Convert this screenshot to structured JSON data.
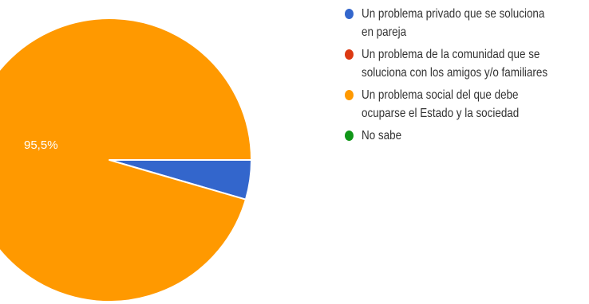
{
  "chart_data": {
    "type": "pie",
    "slices": [
      {
        "label": "Un problema privado que se soluciona en pareja",
        "value": 4.5,
        "color": "#3366cc"
      },
      {
        "label": "Un problema de la comunidad que se soluciona con los amigos y/o familiares",
        "value": 0,
        "color": "#dc3912"
      },
      {
        "label": "Un problema social del que debe ocuparse el Estado y la sociedad",
        "value": 95.5,
        "color": "#ff9900"
      },
      {
        "label": "No sabe",
        "value": 0,
        "color": "#109618"
      }
    ],
    "data_labels": [
      {
        "slice": 2,
        "text": "95,5%"
      }
    ],
    "legend": {
      "position": "right",
      "items": [
        {
          "lines": [
            "Un problema privado que se soluciona",
            "en pareja"
          ],
          "color": "#3366cc"
        },
        {
          "lines": [
            "Un problema de la comunidad que se",
            "soluciona con los amigos y/o familiares"
          ],
          "color": "#dc3912"
        },
        {
          "lines": [
            "Un problema social del que debe",
            "ocuparse el Estado y la sociedad"
          ],
          "color": "#ff9900"
        },
        {
          "lines": [
            "No sabe"
          ],
          "color": "#109618"
        }
      ]
    }
  }
}
